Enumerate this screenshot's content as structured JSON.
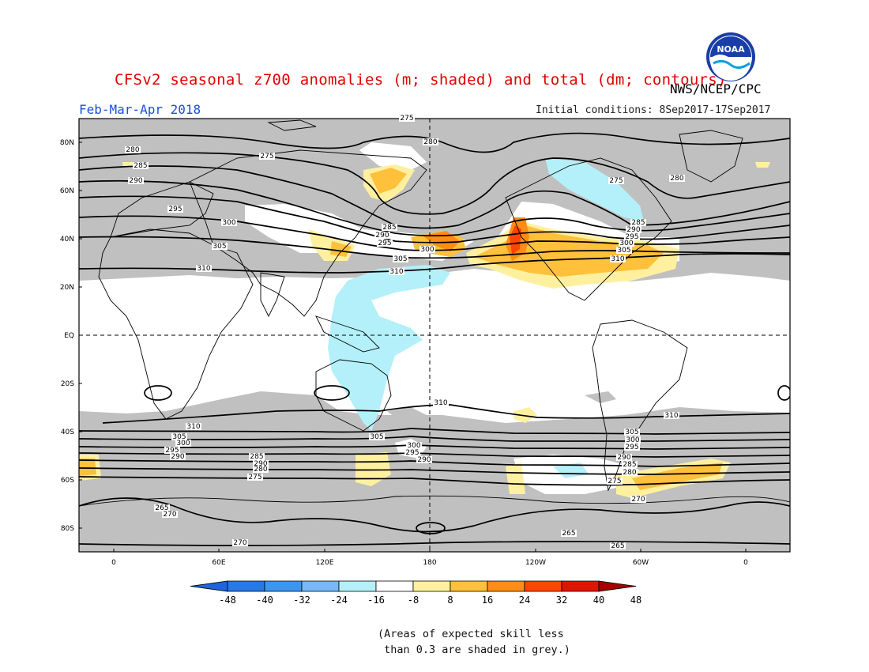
{
  "header": {
    "title": "CFSv2 seasonal z700 anomalies (m; shaded) and total (dm; contours)",
    "agency": "NWS/NCEP/CPC",
    "season": "Feb-Mar-Apr 2018",
    "initial_conditions": "Initial conditions: 8Sep2017-17Sep2017",
    "logo_text": "NOAA"
  },
  "map": {
    "projection": "cylindrical equidistant",
    "lat_ticks": [
      "80N",
      "60N",
      "40N",
      "20N",
      "EQ",
      "20S",
      "40S",
      "60S",
      "80S"
    ],
    "lon_ticks": [
      "0",
      "60E",
      "120E",
      "180",
      "120W",
      "60W",
      "0"
    ],
    "grid": "dashed equator and 180 meridian",
    "colors": {
      "grey_low_skill": "#c0c0c0",
      "ocean_land_background": "#ffffff",
      "coast": "#000000"
    },
    "contour_labels": [
      "275",
      "280",
      "285",
      "290",
      "295",
      "300",
      "305",
      "310",
      "265",
      "270"
    ],
    "contour_labels_nh": [
      {
        "text": "275"
      },
      {
        "text": "280"
      },
      {
        "text": "285"
      },
      {
        "text": "290"
      },
      {
        "text": "295"
      },
      {
        "text": "300"
      },
      {
        "text": "305"
      },
      {
        "text": "310"
      }
    ]
  },
  "colorbar": {
    "labels": [
      "-48",
      "-40",
      "-32",
      "-24",
      "-16",
      "-8",
      "8",
      "16",
      "24",
      "32",
      "40",
      "48"
    ],
    "colors": [
      "#1e64dc",
      "#2878e6",
      "#3c96f0",
      "#78b9f5",
      "#b4f0fa",
      "#ffffff",
      "#fff0a0",
      "#ffc03c",
      "#ff8c14",
      "#ff4600",
      "#e11400",
      "#a50000"
    ],
    "unit": "m"
  },
  "footnote": {
    "line1": "(Areas of expected skill less",
    "line2": " than 0.3 are shaded in grey.)"
  }
}
